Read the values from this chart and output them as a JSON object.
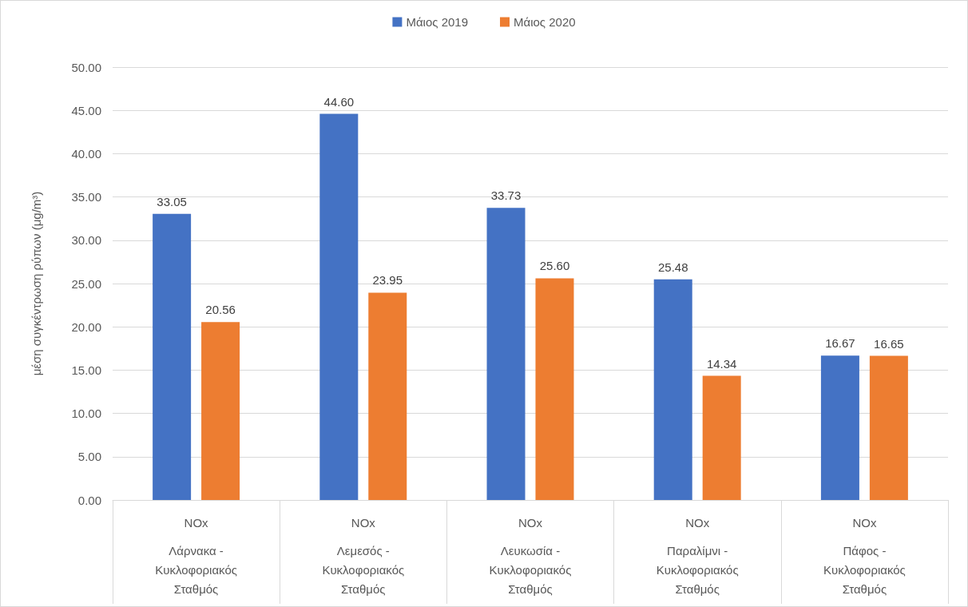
{
  "chart_data": {
    "type": "bar",
    "ylabel": "μέση συγκέντρωση ρύπων (μg/m³)",
    "categories": [
      "NOx\nΛάρνακα - Κυκλοφοριακός Σταθμός",
      "NOx\nΛεμεσός - Κυκλοφοριακός Σταθμός",
      "NOx\nΛευκωσία - Κυκλοφοριακός Σταθμός",
      "NOx\nΠαραλίμνι - Κυκλοφοριακός Σταθμός",
      "NOx\nΠάφος - Κυκλοφοριακός Σταθμός"
    ],
    "series": [
      {
        "name": "Μάιος 2019",
        "color": "#4472c4",
        "values": [
          33.05,
          44.6,
          33.73,
          25.48,
          16.67
        ],
        "value_labels": [
          "33.05",
          "44.60",
          "33.73",
          "25.48",
          "16.67"
        ]
      },
      {
        "name": "Μάιος 2020",
        "color": "#ed7d31",
        "values": [
          20.56,
          23.95,
          25.6,
          14.34,
          16.65
        ],
        "value_labels": [
          "20.56",
          "23.95",
          "25.60",
          "14.34",
          "16.65"
        ]
      }
    ],
    "ylim": [
      0,
      50
    ],
    "yticks": [
      {
        "value": 0,
        "label": "0.00"
      },
      {
        "value": 5,
        "label": "5.00"
      },
      {
        "value": 10,
        "label": "10.00"
      },
      {
        "value": 15,
        "label": "15.00"
      },
      {
        "value": 20,
        "label": "20.00"
      },
      {
        "value": 25,
        "label": "25.00"
      },
      {
        "value": 30,
        "label": "30.00"
      },
      {
        "value": 35,
        "label": "35.00"
      },
      {
        "value": 40,
        "label": "40.00"
      },
      {
        "value": 45,
        "label": "45.00"
      },
      {
        "value": 50,
        "label": "50.00"
      }
    ],
    "grid": "y",
    "legend": "top"
  }
}
